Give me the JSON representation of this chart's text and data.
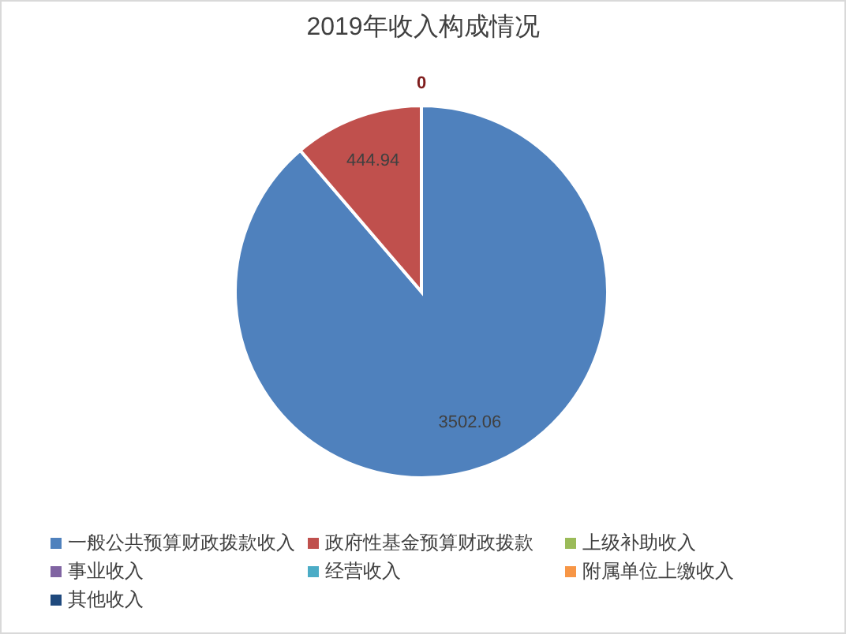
{
  "chart_data": {
    "type": "pie",
    "title": "2019年收入构成情况",
    "categories": [
      "一般公共预算财政拨款收入",
      "政府性基金预算财政拨款",
      "上级补助收入",
      "事业收入",
      "经营收入",
      "附属单位上缴收入",
      "其他收入"
    ],
    "values": [
      3502.06,
      444.94,
      0,
      0,
      0,
      0,
      0
    ],
    "colors": [
      "#4f81bd",
      "#c0504d",
      "#9bbb59",
      "#8064a2",
      "#4bacc6",
      "#f79646",
      "#1f497d"
    ],
    "value_labels": [
      "3502.06",
      "444.94",
      "0",
      null,
      null,
      null,
      null
    ],
    "legend": "bottom"
  }
}
